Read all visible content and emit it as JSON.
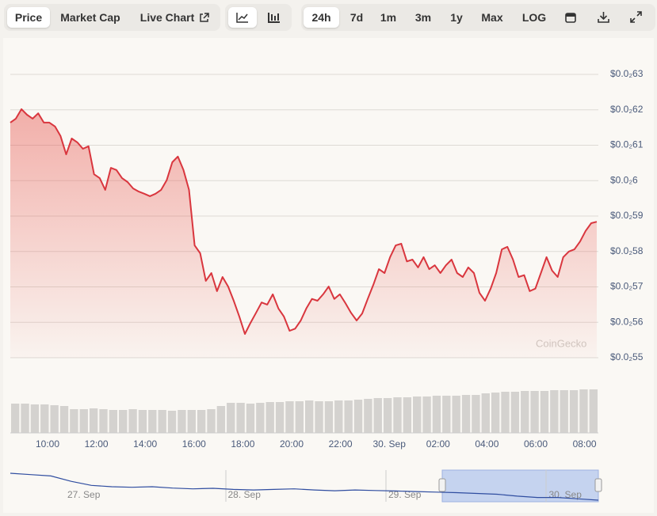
{
  "toolbar": {
    "tabs": [
      "Price",
      "Market Cap",
      "Live Chart"
    ],
    "ranges": [
      "24h",
      "7d",
      "1m",
      "3m",
      "1y",
      "Max",
      "LOG"
    ]
  },
  "chart_data": {
    "type": "line",
    "color": "#d9363e",
    "values": [
      0.0006164,
      0.0006175,
      0.0006202,
      0.0006186,
      0.0006175,
      0.000619,
      0.0006164,
      0.0006164,
      0.0006153,
      0.0006126,
      0.0006074,
      0.0006119,
      0.0006108,
      0.000609,
      0.0006097,
      0.0006018,
      0.0006007,
      0.0005974,
      0.0006036,
      0.000603,
      0.0006007,
      0.0005996,
      0.0005978,
      0.0005969,
      0.0005963,
      0.0005956,
      0.0005963,
      0.0005974,
      0.0006001,
      0.0006052,
      0.0006068,
      0.000603,
      0.0005974,
      0.0005817,
      0.0005795,
      0.0005717,
      0.0005739,
      0.0005688,
      0.0005728,
      0.0005701,
      0.0005661,
      0.0005616,
      0.0005567,
      0.0005598,
      0.0005627,
      0.0005656,
      0.000565,
      0.0005679,
      0.0005639,
      0.0005616,
      0.0005576,
      0.0005582,
      0.0005605,
      0.0005639,
      0.0005666,
      0.0005661,
      0.0005679,
      0.0005701,
      0.0005666,
      0.0005679,
      0.0005654,
      0.0005627,
      0.0005605,
      0.0005625,
      0.0005666,
      0.0005706,
      0.000575,
      0.0005739,
      0.0005784,
      0.0005817,
      0.0005822,
      0.0005772,
      0.0005777,
      0.0005755,
      0.0005784,
      0.000575,
      0.0005761,
      0.0005739,
      0.0005761,
      0.0005777,
      0.0005739,
      0.0005728,
      0.0005755,
      0.0005739,
      0.0005683,
      0.0005661,
      0.0005695,
      0.0005739,
      0.0005806,
      0.0005813,
      0.0005777,
      0.0005728,
      0.0005733,
      0.0005688,
      0.0005695,
      0.0005739,
      0.0005784,
      0.0005746,
      0.0005728,
      0.0005784,
      0.00058,
      0.0005806,
      0.0005828,
      0.0005858,
      0.000588,
      0.0005884
    ],
    "ylim": [
      0.00055,
      0.00063
    ],
    "yticks": [
      {
        "value": 0.00055,
        "label": "$0.0₂55"
      },
      {
        "value": 0.00056,
        "label": "$0.0₂56"
      },
      {
        "value": 0.00057,
        "label": "$0.0₂57"
      },
      {
        "value": 0.00058,
        "label": "$0.0₂58"
      },
      {
        "value": 0.00059,
        "label": "$0.0₂59"
      },
      {
        "value": 0.0006,
        "label": "$0.0₂6"
      },
      {
        "value": 0.00061,
        "label": "$0.0₂61"
      },
      {
        "value": 0.00062,
        "label": "$0.0₂62"
      },
      {
        "value": 0.00063,
        "label": "$0.0₂63"
      }
    ],
    "grid": true,
    "xtick_labels": [
      "10:00",
      "12:00",
      "14:00",
      "16:00",
      "18:00",
      "20:00",
      "22:00",
      "30. Sep",
      "02:00",
      "04:00",
      "06:00",
      "08:00"
    ],
    "volume": {
      "color": "#d4d2cf",
      "values": [
        37,
        37,
        36,
        36,
        35,
        34,
        30,
        30,
        31,
        30,
        29,
        29,
        30,
        29,
        29,
        29,
        28,
        29,
        29,
        29,
        30,
        34,
        38,
        38,
        37,
        38,
        39,
        39,
        40,
        40,
        41,
        40,
        40,
        41,
        41,
        42,
        43,
        44,
        44,
        45,
        45,
        46,
        46,
        47,
        47,
        47,
        48,
        48,
        50,
        51,
        52,
        52,
        53,
        53,
        53,
        54,
        54,
        54,
        55,
        55
      ]
    },
    "navigator": {
      "color": "#2f4da0",
      "values": [
        0.00069,
        0.000685,
        0.00068,
        0.00066,
        0.000645,
        0.00064,
        0.000638,
        0.00064,
        0.000635,
        0.000632,
        0.000634,
        0.00063,
        0.000628,
        0.00063,
        0.000632,
        0.000628,
        0.000625,
        0.000628,
        0.000626,
        0.000624,
        0.000622,
        0.00062,
        0.000618,
        0.000615,
        0.000612,
        0.000605,
        0.0006,
        0.0006,
        0.000595,
        0.00059
      ],
      "labels": [
        "27. Sep",
        "28. Sep",
        "29. Sep",
        "30. Sep"
      ]
    },
    "watermark": "CoinGecko"
  }
}
